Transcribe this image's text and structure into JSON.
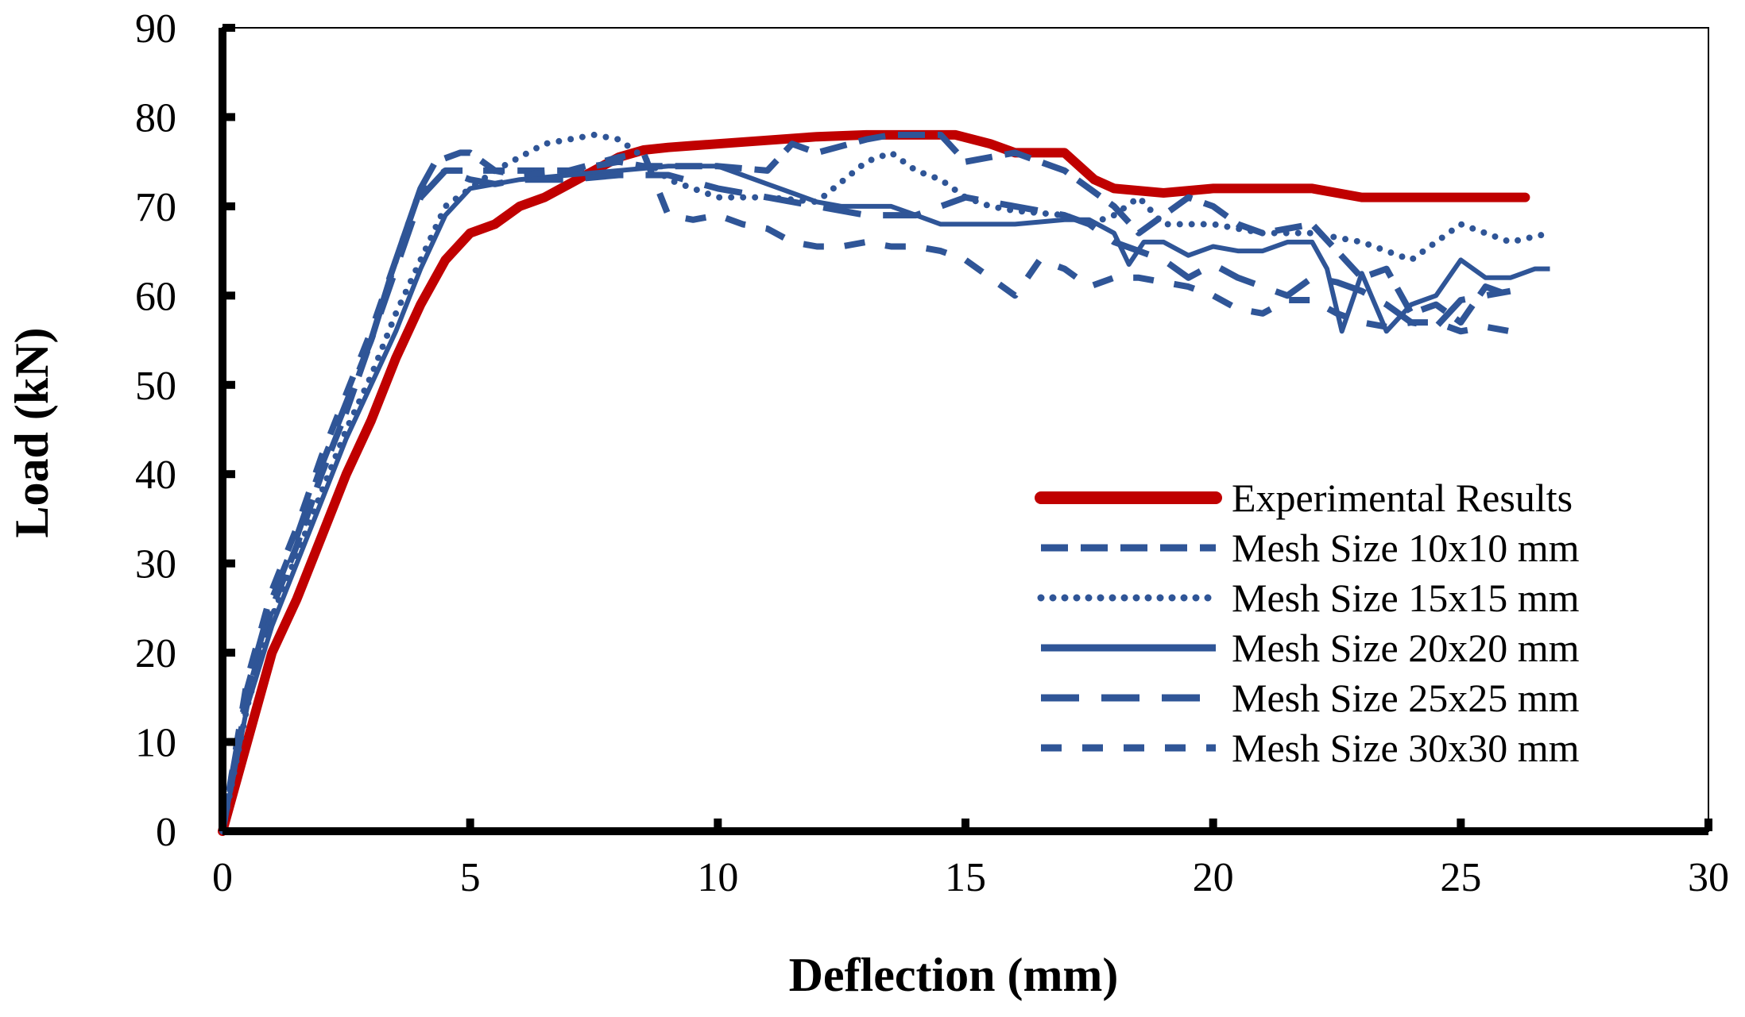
{
  "chart_data": {
    "type": "line",
    "title": "",
    "xlabel": "Deflection (mm)",
    "ylabel": "Load (kN)",
    "xlim": [
      0,
      30
    ],
    "ylim": [
      0,
      90
    ],
    "xticks": [
      "0",
      "5",
      "10",
      "15",
      "20",
      "25",
      "30"
    ],
    "yticks": [
      "0",
      "10",
      "20",
      "30",
      "40",
      "50",
      "60",
      "70",
      "80",
      "90"
    ],
    "grid": false,
    "legend_position": "lower-right",
    "series": [
      {
        "name": "Experimental Results",
        "color": "#C00000",
        "style": "solid-thick",
        "x": [
          0,
          0.3,
          0.7,
          1.0,
          1.5,
          2.0,
          2.5,
          3.0,
          3.5,
          4.0,
          4.5,
          5.0,
          5.5,
          6.0,
          6.5,
          7.0,
          7.5,
          8.0,
          8.5,
          9.0,
          9.5,
          10,
          11,
          12,
          13,
          14,
          14.8,
          15.5,
          16,
          17,
          17.3,
          17.6,
          18,
          19,
          20,
          21,
          22,
          23,
          24,
          25,
          26.3
        ],
        "y": [
          0,
          6,
          14,
          20,
          26,
          33,
          40,
          46,
          53,
          59,
          64,
          67,
          68,
          70,
          71,
          72.5,
          74,
          75.5,
          76.3,
          76.6,
          76.8,
          77,
          77.4,
          77.8,
          78,
          78,
          78,
          77,
          76,
          76,
          74.5,
          73,
          72,
          71.5,
          72,
          72,
          72,
          71,
          71,
          71,
          71
        ]
      },
      {
        "name": "Mesh Size 10x10 mm",
        "color": "#2F5597",
        "style": "dashed",
        "x": [
          0,
          0.5,
          1.0,
          1.5,
          2.0,
          2.5,
          3.0,
          3.5,
          4.0,
          4.3,
          4.8,
          5.0,
          5.5,
          6.0,
          7.0,
          8.0,
          8.5,
          9.0,
          10,
          11,
          11.5,
          12,
          13,
          13.5,
          14,
          14.5,
          15,
          16,
          16.5,
          17,
          18,
          18.5,
          19,
          19.5,
          20,
          20.5,
          21,
          22,
          22.5,
          23,
          23.5,
          24,
          24.5,
          25,
          25.5,
          26
        ],
        "y": [
          0,
          15,
          25,
          32,
          40,
          47,
          55,
          64,
          72,
          75,
          76,
          76,
          74,
          74,
          74,
          75,
          74.5,
          74.5,
          74.5,
          74,
          77,
          76,
          77.5,
          78,
          78,
          78,
          75,
          76,
          75,
          74,
          70,
          67,
          69,
          71,
          70,
          68,
          67,
          68,
          65,
          62,
          63,
          58,
          59,
          57,
          61,
          60
        ]
      },
      {
        "name": "Mesh Size 15x15 mm",
        "color": "#2F5597",
        "style": "dotted",
        "x": [
          0,
          0.5,
          1.0,
          1.5,
          2.0,
          2.5,
          3.0,
          3.5,
          4.0,
          4.5,
          5.0,
          5.5,
          6.0,
          6.5,
          7.0,
          7.5,
          8.0,
          8.5,
          9.0,
          9.5,
          10,
          11,
          12,
          13,
          13.5,
          14,
          14.5,
          15,
          15.5,
          16,
          17,
          17.5,
          18,
          18.5,
          19,
          20,
          21,
          22,
          23,
          24,
          25,
          26,
          26.8
        ],
        "y": [
          0,
          14,
          24,
          31,
          38,
          45,
          51,
          58,
          64,
          70,
          72,
          74,
          75.5,
          77,
          77.5,
          78,
          77.5,
          75.5,
          73,
          72,
          71,
          71,
          70.5,
          75,
          76,
          74,
          73,
          71,
          70,
          69.5,
          69,
          68,
          69,
          71,
          68,
          68,
          67,
          67,
          66,
          64,
          68,
          66,
          67
        ]
      },
      {
        "name": "Mesh Size 20x20 mm",
        "color": "#2F5597",
        "style": "solid",
        "x": [
          0,
          0.5,
          1.0,
          1.5,
          2.0,
          2.5,
          3.0,
          3.5,
          4.0,
          4.5,
          5.0,
          6.0,
          7.0,
          8.0,
          9.0,
          10,
          10.5,
          11,
          11.5,
          12,
          12.5,
          13,
          13.5,
          14,
          14.5,
          15,
          15.5,
          16,
          17,
          17.5,
          18,
          18.3,
          18.6,
          19,
          19.5,
          20,
          20.5,
          21,
          21.5,
          22,
          22.3,
          22.6,
          23,
          23.5,
          24,
          24.5,
          25,
          25.5,
          26,
          26.5,
          26.8
        ],
        "y": [
          0,
          14,
          23,
          30,
          37,
          44,
          50,
          56,
          63,
          69,
          72,
          73,
          73.5,
          74,
          74.5,
          74.5,
          73.5,
          72.5,
          71.5,
          70.5,
          70,
          70,
          70,
          69,
          68,
          68,
          68,
          68,
          68.5,
          68.5,
          67,
          63.5,
          66,
          66,
          64.5,
          65.5,
          65,
          65,
          66,
          66,
          63,
          56,
          62.5,
          56,
          59,
          60,
          64,
          62,
          62,
          63,
          63
        ]
      },
      {
        "name": "Mesh Size 25x25 mm",
        "color": "#2F5597",
        "style": "long-dash-dot",
        "x": [
          0,
          0.5,
          1.0,
          1.5,
          2.0,
          2.5,
          3.0,
          3.5,
          4.0,
          4.5,
          5.0,
          5.5,
          6.0,
          7.0,
          8.0,
          8.5,
          9.0,
          10,
          11,
          12,
          13,
          14,
          14.5,
          15,
          15.5,
          16,
          16.5,
          17,
          17.5,
          18,
          18.5,
          19,
          19.5,
          20,
          20.5,
          21,
          21.5,
          22,
          22.5,
          23,
          23.5,
          24,
          24.5,
          25,
          25.5,
          26
        ],
        "y": [
          0,
          16,
          26,
          33,
          41,
          48,
          55,
          63,
          71,
          74,
          73,
          72.5,
          73,
          73,
          73.5,
          73.5,
          73.5,
          72,
          71,
          70,
          69,
          69,
          70,
          71,
          70.5,
          70,
          69.5,
          69,
          68,
          66,
          65,
          64,
          62,
          63.5,
          62,
          61,
          60,
          62,
          61.5,
          60.5,
          59,
          57,
          56.5,
          59.5,
          60,
          60.5
        ]
      },
      {
        "name": "Mesh Size 30x30 mm",
        "color": "#2F5597",
        "style": "dash-dot",
        "x": [
          0,
          0.5,
          1.0,
          1.5,
          2.0,
          2.5,
          3.0,
          3.5,
          4.0,
          4.5,
          5.0,
          5.5,
          6.0,
          7.0,
          8.0,
          8.5,
          9.0,
          9.5,
          10,
          10.5,
          11,
          11.5,
          12,
          12.5,
          13,
          13.5,
          14,
          14.5,
          15,
          15.5,
          16,
          16.5,
          17,
          17.5,
          18,
          18.5,
          19,
          19.5,
          20,
          20.5,
          21,
          21.5,
          22,
          22.5,
          23,
          23.5,
          24,
          24.5,
          25,
          25.5,
          26
        ],
        "y": [
          0,
          17,
          27,
          34,
          42,
          49,
          56,
          64,
          72,
          74,
          74,
          74,
          73.5,
          74,
          75.5,
          76,
          69,
          68.5,
          69,
          68,
          67.5,
          66,
          65.5,
          65.5,
          66,
          65.5,
          65.5,
          65,
          64,
          62,
          60,
          64,
          63,
          61,
          62,
          62,
          61.5,
          61,
          60,
          58.5,
          58,
          59.5,
          59.5,
          58,
          57,
          56.5,
          57,
          57,
          56,
          56.5,
          56
        ]
      }
    ]
  }
}
